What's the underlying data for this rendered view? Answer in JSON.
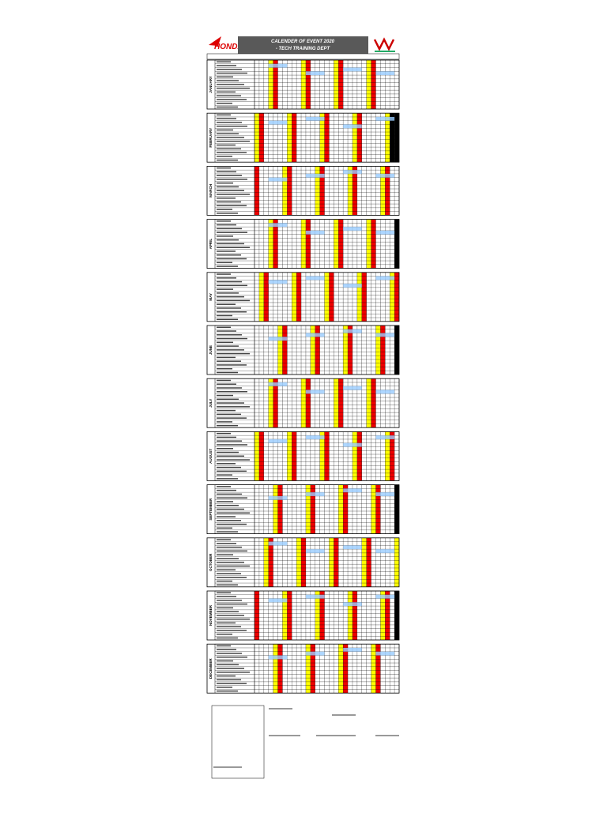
{
  "header": {
    "logo": "HONDA",
    "title": "CALENDER OF EVENT 2020",
    "subtitle": "- TECH TRAINING DEPT"
  },
  "months": [
    "JANUARY",
    "FEBRUARY",
    "MARCH",
    "APRIL",
    "MAY",
    "JUNE",
    "JULY",
    "AUGUST",
    "SEPTEMBER",
    "OCTOBER",
    "NOVEMBER",
    "DECEMBER"
  ]
}
